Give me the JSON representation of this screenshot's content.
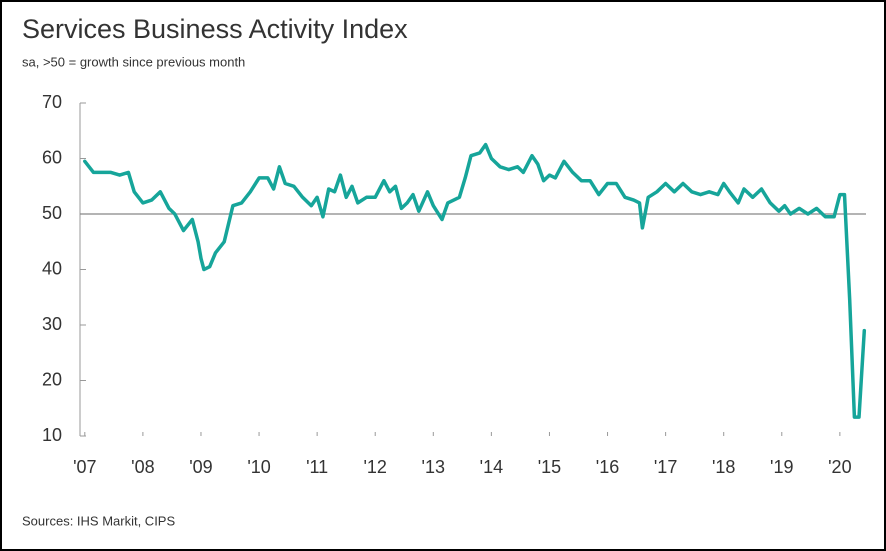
{
  "chart_data": {
    "type": "line",
    "title": "Services Business Activity Index",
    "subtitle": "sa, >50 = growth since previous month",
    "source": "Sources: IHS Markit, CIPS",
    "series": [
      {
        "name": "Services Business Activity Index",
        "color": "#16a59a",
        "x": [
          2007.0,
          2007.15,
          2007.3,
          2007.45,
          2007.6,
          2007.75,
          2007.85,
          2008.0,
          2008.15,
          2008.3,
          2008.45,
          2008.55,
          2008.7,
          2008.85,
          2008.95,
          2009.0,
          2009.05,
          2009.15,
          2009.25,
          2009.4,
          2009.55,
          2009.7,
          2009.85,
          2010.0,
          2010.15,
          2010.25,
          2010.35,
          2010.45,
          2010.6,
          2010.75,
          2010.9,
          2011.0,
          2011.1,
          2011.2,
          2011.3,
          2011.4,
          2011.5,
          2011.6,
          2011.7,
          2011.85,
          2012.0,
          2012.15,
          2012.25,
          2012.35,
          2012.45,
          2012.55,
          2012.65,
          2012.75,
          2012.9,
          2013.0,
          2013.15,
          2013.25,
          2013.45,
          2013.55,
          2013.65,
          2013.8,
          2013.9,
          2014.0,
          2014.15,
          2014.3,
          2014.45,
          2014.55,
          2014.7,
          2014.8,
          2014.9,
          2015.0,
          2015.1,
          2015.25,
          2015.4,
          2015.55,
          2015.7,
          2015.85,
          2016.0,
          2016.15,
          2016.3,
          2016.45,
          2016.55,
          2016.6,
          2016.7,
          2016.85,
          2017.0,
          2017.15,
          2017.3,
          2017.45,
          2017.6,
          2017.75,
          2017.9,
          2018.0,
          2018.1,
          2018.25,
          2018.35,
          2018.5,
          2018.65,
          2018.8,
          2018.95,
          2019.05,
          2019.15,
          2019.3,
          2019.45,
          2019.6,
          2019.75,
          2019.9,
          2020.0,
          2020.08,
          2020.17,
          2020.25,
          2020.33,
          2020.42
        ],
        "values": [
          59.5,
          57.5,
          57.5,
          57.5,
          57,
          57.5,
          54,
          52,
          52.5,
          54,
          51,
          50,
          47,
          49,
          45,
          42,
          40,
          40.5,
          43,
          45,
          51.5,
          52,
          54,
          56.5,
          56.5,
          54.5,
          58.5,
          55.5,
          55,
          53,
          51.5,
          53,
          49.5,
          54.5,
          54,
          57,
          53,
          55,
          52,
          53,
          53,
          56,
          54,
          55,
          51,
          52,
          53.5,
          50.5,
          54,
          51.5,
          49,
          52,
          53,
          56.5,
          60.5,
          61,
          62.5,
          60,
          58.5,
          58,
          58.5,
          57.5,
          60.5,
          59,
          56,
          57,
          56.5,
          59.5,
          57.5,
          56,
          56,
          53.5,
          55.5,
          55.5,
          53,
          52.5,
          52,
          47.5,
          53,
          54,
          55.5,
          54,
          55.5,
          54,
          53.5,
          54,
          53.5,
          55.5,
          54,
          52,
          54.5,
          53,
          54.5,
          52,
          50.5,
          51.5,
          50,
          51,
          50,
          51,
          49.5,
          49.5,
          53.5,
          53.5,
          34.5,
          13.4,
          13.4,
          29
        ]
      }
    ],
    "hline": 50,
    "xlim": [
      2006.9,
      2020.45
    ],
    "xticks": [
      {
        "value": 2007,
        "label": "'07"
      },
      {
        "value": 2008,
        "label": "'08"
      },
      {
        "value": 2009,
        "label": "'09"
      },
      {
        "value": 2010,
        "label": "'10"
      },
      {
        "value": 2011,
        "label": "'11"
      },
      {
        "value": 2012,
        "label": "'12"
      },
      {
        "value": 2013,
        "label": "'13"
      },
      {
        "value": 2014,
        "label": "'14"
      },
      {
        "value": 2015,
        "label": "'15"
      },
      {
        "value": 2016,
        "label": "'16"
      },
      {
        "value": 2017,
        "label": "'17"
      },
      {
        "value": 2018,
        "label": "'18"
      },
      {
        "value": 2019,
        "label": "'19"
      },
      {
        "value": 2020,
        "label": "'20"
      }
    ],
    "ylim": [
      10,
      70
    ],
    "yticks": [
      10,
      20,
      30,
      40,
      50,
      60,
      70
    ]
  }
}
